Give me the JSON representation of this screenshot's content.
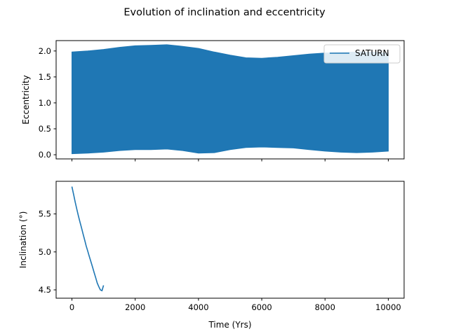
{
  "colors": {
    "series": "#1f77b4",
    "axes": "#000000",
    "background": "#ffffff",
    "legend_border": "#cccccc"
  },
  "chart_data": {
    "type": "line",
    "title": "Evolution of inclination and eccentricity",
    "x_axis": {
      "label": "Time (Yrs)",
      "range": [
        -500,
        10500
      ],
      "ticks": [
        0,
        2000,
        4000,
        6000,
        8000,
        10000
      ],
      "tick_labels": [
        "0",
        "2000",
        "4000",
        "6000",
        "8000",
        "10000"
      ]
    },
    "subplots": [
      {
        "id": "eccentricity",
        "ylabel": "Eccentricity",
        "ylim": [
          -0.08,
          2.2
        ],
        "yticks": [
          0.0,
          0.5,
          1.0,
          1.5,
          2.0
        ],
        "ytick_labels": [
          "0.0",
          "0.5",
          "1.0",
          "1.5",
          "2.0"
        ],
        "legend": {
          "label": "SATURN",
          "placement": "upper-right"
        },
        "series": [
          {
            "name": "SATURN",
            "x": [
              0,
              500,
              1000,
              1500,
              2000,
              2500,
              3000,
              3500,
              4000,
              4500,
              5000,
              5500,
              6000,
              6500,
              7000,
              7500,
              8000,
              8500,
              9000,
              9500,
              10000
            ],
            "upper": [
              1.98,
              2.0,
              2.03,
              2.07,
              2.1,
              2.11,
              2.12,
              2.09,
              2.05,
              1.98,
              1.92,
              1.87,
              1.86,
              1.88,
              1.91,
              1.94,
              1.96,
              1.97,
              1.98,
              1.98,
              1.96
            ],
            "lower": [
              0.02,
              0.03,
              0.05,
              0.08,
              0.1,
              0.1,
              0.11,
              0.08,
              0.03,
              0.04,
              0.1,
              0.14,
              0.15,
              0.14,
              0.13,
              0.1,
              0.07,
              0.05,
              0.04,
              0.05,
              0.07
            ]
          }
        ]
      },
      {
        "id": "inclination",
        "ylabel": "Inclination (°)",
        "ylim": [
          4.39,
          5.93
        ],
        "yticks": [
          4.5,
          5.0,
          5.5
        ],
        "ytick_labels": [
          "4.5",
          "5.0",
          "5.5"
        ],
        "series": [
          {
            "name": "SATURN",
            "x": [
              0,
              30,
              60,
              100,
              150,
              200,
              250,
              300,
              350,
              400,
              450,
              500,
              550,
              600,
              650,
              700,
              750,
              800,
              850,
              900,
              950,
              1000
            ],
            "y": [
              5.86,
              5.8,
              5.74,
              5.66,
              5.57,
              5.48,
              5.4,
              5.32,
              5.24,
              5.16,
              5.08,
              5.01,
              4.94,
              4.87,
              4.8,
              4.73,
              4.66,
              4.59,
              4.54,
              4.5,
              4.49,
              4.56
            ]
          }
        ]
      }
    ]
  }
}
